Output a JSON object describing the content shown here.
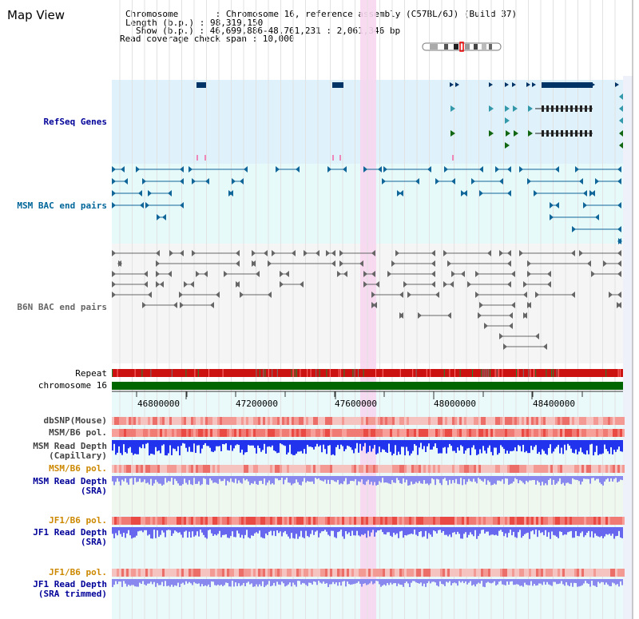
{
  "title": "Map View",
  "info": {
    "chromosome": "Chromosome       : Chromosome 16, reference assembly (C57BL/6J) (Build 37)",
    "length": "Length (b.p.) : 98,319,150",
    "show": "Show (b.p.) : 46,699,886-48,761,231 : 2,061,346 bp",
    "coverage": "Read coverage check span : 10,000"
  },
  "colors": {
    "refseq_label": "#000099",
    "msm_bac_label": "#006699",
    "b6n_label": "#666666",
    "pol_label": "#cc8800",
    "depth_label": "#000099",
    "highlight": "#f7d6f0",
    "chromosome_band": "#006600"
  },
  "tracks": {
    "refseq": "RefSeq Genes",
    "msm_bac": "MSM BAC end pairs",
    "b6n_bac": "B6N BAC end pairs",
    "repeat": "Repeat",
    "chromosome": "chromosome 16",
    "dbsnp": "dbSNP(Mouse)",
    "msm_b6_pol_1": "MSM/B6 pol.",
    "msm_depth_cap_1": "MSM Read Depth",
    "msm_depth_cap_2": "(Capillary)",
    "msm_b6_pol_2": "MSM/B6 pol.",
    "msm_depth_sra_1": "MSM Read Depth",
    "msm_depth_sra_2": "(SRA)",
    "jf1_b6_pol_1": "JF1/B6 pol.",
    "jf1_depth_sra_1": "JF1 Read Depth",
    "jf1_depth_sra_2": "(SRA)",
    "jf1_b6_pol_2": "JF1/B6 pol.",
    "jf1_depth_trim_1": "JF1 Read Depth",
    "jf1_depth_trim_2": "(SRA trimmed)"
  },
  "axis_ticks": [
    "46800000",
    "47200000",
    "47600000",
    "48000000",
    "48400000"
  ]
}
